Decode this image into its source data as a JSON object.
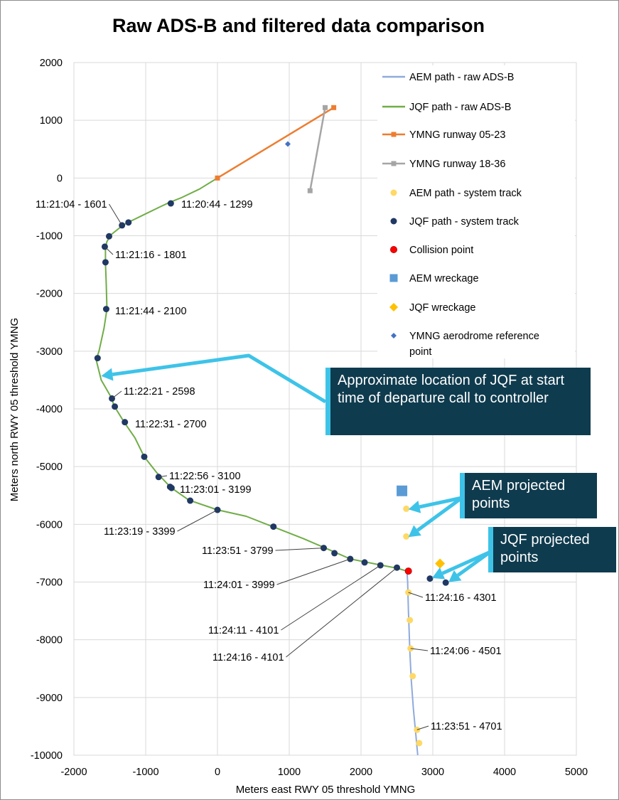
{
  "chart_data": {
    "type": "scatter",
    "title": "Raw ADS-B and filtered data comparison",
    "xlabel": "Meters east RWY 05 threshold YMNG",
    "ylabel": "Meters north RWY 05 threshold YMNG",
    "xlim": [
      -2000,
      5000
    ],
    "ylim": [
      -10000,
      2000
    ],
    "x_ticks": [
      -2000,
      -1000,
      0,
      1000,
      2000,
      3000,
      4000,
      5000
    ],
    "y_ticks": [
      2000,
      1000,
      0,
      -1000,
      -2000,
      -3000,
      -4000,
      -5000,
      -6000,
      -7000,
      -8000,
      -9000,
      -10000
    ],
    "grid": true,
    "legend_position": "top-right",
    "series": [
      {
        "name": "AEM path - raw ADS-B",
        "kind": "line",
        "color": "#8faadc",
        "points": [
          [
            2640,
            -6800
          ],
          [
            2650,
            -7000
          ],
          [
            2660,
            -7500
          ],
          [
            2680,
            -8200
          ],
          [
            2700,
            -8700
          ],
          [
            2730,
            -9200
          ],
          [
            2760,
            -9600
          ],
          [
            2790,
            -10000
          ]
        ]
      },
      {
        "name": "JQF path - raw ADS-B",
        "kind": "line",
        "color": "#70ad47",
        "points": [
          [
            0,
            0
          ],
          [
            -250,
            -190
          ],
          [
            -500,
            -340
          ],
          [
            -680,
            -430
          ],
          [
            -800,
            -500
          ],
          [
            -1000,
            -620
          ],
          [
            -1230,
            -760
          ],
          [
            -1320,
            -820
          ],
          [
            -1480,
            -980
          ],
          [
            -1540,
            -1100
          ],
          [
            -1560,
            -1200
          ],
          [
            -1560,
            -1300
          ],
          [
            -1560,
            -1480
          ],
          [
            -1550,
            -1800
          ],
          [
            -1540,
            -2270
          ],
          [
            -1580,
            -2600
          ],
          [
            -1650,
            -3000
          ],
          [
            -1690,
            -3150
          ],
          [
            -1620,
            -3500
          ],
          [
            -1480,
            -3800
          ],
          [
            -1440,
            -3950
          ],
          [
            -1300,
            -4230
          ],
          [
            -1150,
            -4500
          ],
          [
            -1020,
            -4830
          ],
          [
            -850,
            -5100
          ],
          [
            -650,
            -5360
          ],
          [
            -400,
            -5580
          ],
          [
            0,
            -5750
          ],
          [
            400,
            -5860
          ],
          [
            770,
            -6040
          ],
          [
            1200,
            -6250
          ],
          [
            1500,
            -6410
          ],
          [
            1850,
            -6600
          ],
          [
            2250,
            -6700
          ],
          [
            2500,
            -6760
          ],
          [
            2640,
            -6810
          ]
        ]
      },
      {
        "name": "YMNG runway 05-23",
        "kind": "line",
        "color": "#ed7d31",
        "marker": "square",
        "points": [
          [
            0,
            0
          ],
          [
            1620,
            1220
          ]
        ]
      },
      {
        "name": "YMNG runway 18-36",
        "kind": "line",
        "color": "#a5a5a5",
        "marker": "square",
        "points": [
          [
            1500,
            1220
          ],
          [
            1290,
            -220
          ]
        ]
      },
      {
        "name": "AEM path - system track",
        "kind": "marker",
        "color": "#ffd966",
        "marker": "circle",
        "points": [
          [
            2630,
            -5730
          ],
          [
            2630,
            -6210
          ],
          [
            2660,
            -7180
          ],
          [
            2680,
            -7660
          ],
          [
            2690,
            -8150
          ],
          [
            2720,
            -8630
          ],
          [
            2780,
            -9560
          ],
          [
            2810,
            -9790
          ]
        ]
      },
      {
        "name": "JQF path - system track",
        "kind": "marker",
        "color": "#203864",
        "marker": "circle",
        "points": [
          [
            -650,
            -440
          ],
          [
            -1330,
            -820
          ],
          [
            -1240,
            -770
          ],
          [
            -1510,
            -1010
          ],
          [
            -1570,
            -1190
          ],
          [
            -1560,
            -1460
          ],
          [
            -1550,
            -2270
          ],
          [
            -1670,
            -3120
          ],
          [
            -1470,
            -3820
          ],
          [
            -1430,
            -3960
          ],
          [
            -1290,
            -4230
          ],
          [
            -1020,
            -4830
          ],
          [
            -820,
            -5180
          ],
          [
            -660,
            -5350
          ],
          [
            -640,
            -5370
          ],
          [
            -380,
            -5590
          ],
          [
            0,
            -5750
          ],
          [
            780,
            -6040
          ],
          [
            1480,
            -6410
          ],
          [
            1630,
            -6500
          ],
          [
            1850,
            -6600
          ],
          [
            2050,
            -6660
          ],
          [
            2270,
            -6710
          ],
          [
            2500,
            -6750
          ],
          [
            2960,
            -6940
          ],
          [
            3180,
            -7010
          ]
        ]
      },
      {
        "name": "Collision point",
        "kind": "marker",
        "color": "#ff0000",
        "marker": "circle",
        "points": [
          [
            2660,
            -6810
          ]
        ]
      },
      {
        "name": "AEM wreckage",
        "kind": "marker",
        "color": "#5b9bd5",
        "marker": "square",
        "points": [
          [
            2570,
            -5420
          ]
        ]
      },
      {
        "name": "JQF wreckage",
        "kind": "marker",
        "color": "#ffc000",
        "marker": "diamond",
        "points": [
          [
            3100,
            -6680
          ]
        ]
      },
      {
        "name": "YMNG aerodrome reference point",
        "kind": "marker",
        "color": "#4472c4",
        "marker": "diamond",
        "points": [
          [
            980,
            590
          ]
        ]
      }
    ],
    "annotations": [
      {
        "text": "11:21:04 - 1601",
        "point": [
          -1330,
          -820
        ],
        "leader": true
      },
      {
        "text": "11:20:44 - 1299",
        "point": [
          -650,
          -440
        ],
        "leader": false
      },
      {
        "text": "11:21:16 - 1801",
        "point": [
          -1570,
          -1190
        ],
        "leader": true
      },
      {
        "text": "11:21:44 - 2100",
        "point": [
          -1550,
          -2270
        ],
        "leader": false
      },
      {
        "text": "11:22:21 - 2598",
        "point": [
          -1470,
          -3820
        ],
        "leader": true
      },
      {
        "text": "11:22:31 - 2700",
        "point": [
          -1290,
          -4230
        ],
        "leader": false
      },
      {
        "text": "11:22:56 - 3100",
        "point": [
          -820,
          -5180
        ],
        "leader": true
      },
      {
        "text": "11:23:01 - 3199",
        "point": [
          -640,
          -5370
        ],
        "leader": false
      },
      {
        "text": "11:23:19 - 3399",
        "point": [
          0,
          -5750
        ],
        "leader": true
      },
      {
        "text": "11:23:51 - 3799",
        "point": [
          1480,
          -6410
        ],
        "leader": true
      },
      {
        "text": "11:24:01 - 3999",
        "point": [
          1850,
          -6600
        ],
        "leader": true
      },
      {
        "text": "11:24:11 - 4101",
        "point": [
          2270,
          -6710
        ],
        "leader": true
      },
      {
        "text": "11:24:16 - 4101",
        "point": [
          2500,
          -6750
        ],
        "leader": true
      },
      {
        "text": "11:24:16 - 4301",
        "point": [
          2660,
          -7180
        ],
        "leader": true
      },
      {
        "text": "11:24:06 - 4501",
        "point": [
          2690,
          -8150
        ],
        "leader": true
      },
      {
        "text": "11:23:51 - 4701",
        "point": [
          2780,
          -9560
        ],
        "leader": true
      }
    ],
    "callouts": [
      {
        "text": "Approximate location of JQF at start time of departure call to controller",
        "arrows_to": [
          [
            -1620,
            -3430
          ]
        ]
      },
      {
        "text": "AEM projected points",
        "arrows_to": [
          [
            2660,
            -5740
          ],
          [
            2660,
            -6220
          ]
        ]
      },
      {
        "text": "JQF projected points",
        "arrows_to": [
          [
            2990,
            -6930
          ],
          [
            3220,
            -7000
          ]
        ]
      }
    ]
  }
}
